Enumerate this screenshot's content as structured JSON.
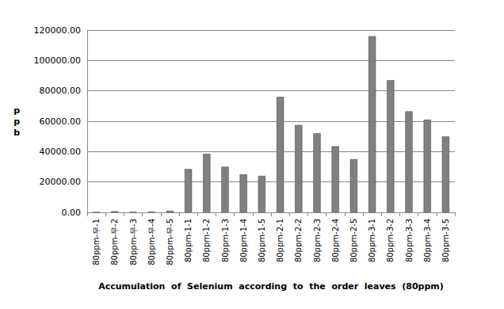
{
  "chart_data": {
    "type": "bar",
    "x_label": "Accumulation  of  Selenium  according  to  the  order  leaves  (80ppm)",
    "y_label": "ppb",
    "categories": [
      "80ppm-무-1",
      "80ppm-무-2",
      "80ppm-무-3",
      "80ppm-무-4",
      "80ppm-무-5",
      "80ppm-1-1",
      "80ppm-1-2",
      "80ppm-1-3",
      "80ppm-1-4",
      "80ppm-1-5",
      "80ppm-2-1",
      "80ppm-2-2",
      "80ppm-2-3",
      "80ppm-2-4",
      "80ppm-2-5",
      "80ppm-3-1",
      "80ppm-3-2",
      "80ppm-3-3",
      "80ppm-3-4",
      "80ppm-3-5"
    ],
    "values": [
      100,
      700,
      300,
      400,
      1000,
      28500,
      38500,
      30000,
      25000,
      24000,
      76000,
      57500,
      52000,
      43500,
      35000,
      116000,
      87000,
      66500,
      61000,
      50000
    ],
    "color": "#808080",
    "ylim": [
      0,
      120000
    ],
    "yticks": [
      {
        "value": 0,
        "label": "0.00"
      },
      {
        "value": 20000,
        "label": "20000.00"
      },
      {
        "value": 40000,
        "label": "40000.00"
      },
      {
        "value": 60000,
        "label": "60000.00"
      },
      {
        "value": 80000,
        "label": "80000.00"
      },
      {
        "value": 100000,
        "label": "100000.00"
      },
      {
        "value": 120000,
        "label": "120000.00"
      }
    ],
    "grid": true
  }
}
